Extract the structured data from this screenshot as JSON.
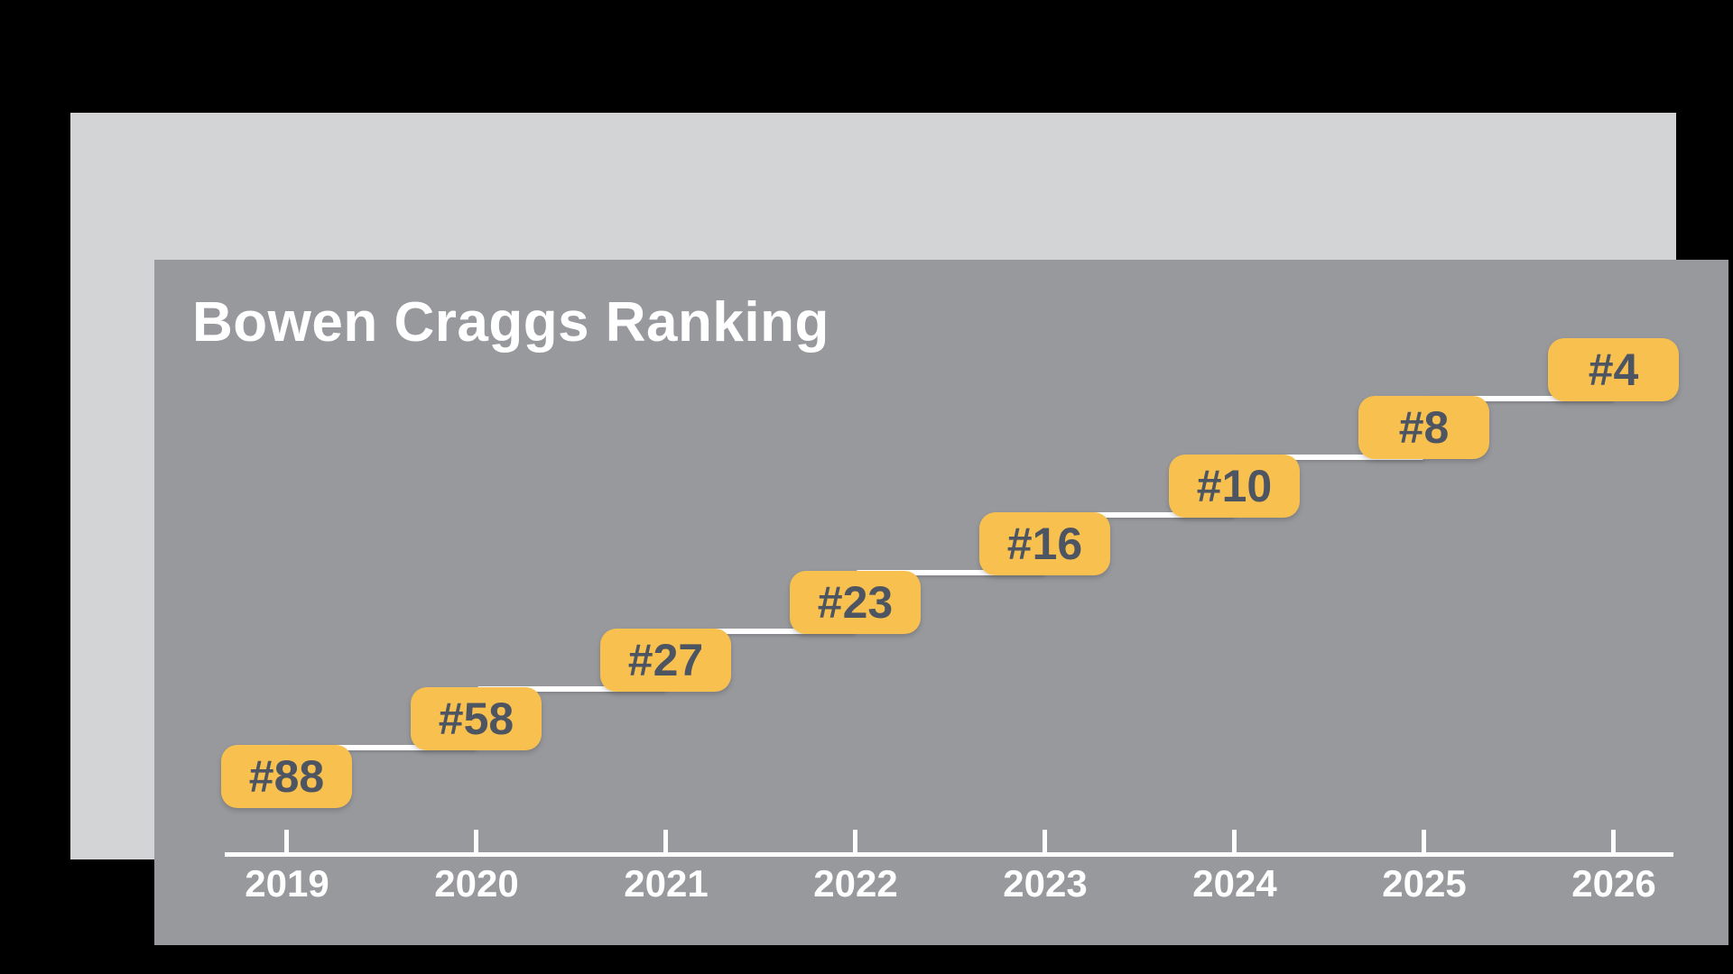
{
  "colors": {
    "background": "#000000",
    "frame": "#D2D4D6",
    "panel": "#98999D",
    "badge_fill": "#F8C14F",
    "badge_text": "#4D5563",
    "line": "#FFFFFF",
    "axis": "#FFFFFF",
    "title": "#FFFFFF"
  },
  "chart_data": {
    "type": "line",
    "title": "Bowen Craggs Ranking",
    "categories": [
      "2019",
      "2020",
      "2021",
      "2022",
      "2023",
      "2024",
      "2025",
      "2026"
    ],
    "series": [
      {
        "name": "Bowen Craggs Ranking",
        "values": [
          88,
          58,
          27,
          23,
          16,
          10,
          8,
          4
        ]
      }
    ],
    "point_labels": [
      "#88",
      "#58",
      "#27",
      "#23",
      "#16",
      "#10",
      "#8",
      "#4"
    ],
    "xlabel": "",
    "ylabel": "",
    "legend_position": "none",
    "grid": false,
    "y_scale": "stylized-staircase (equal vertical steps per year, lower rank number = higher position)",
    "marker_style": "rounded yellow badge with rank label, white step line connecting consecutive years, x-axis ticks above axis line"
  }
}
